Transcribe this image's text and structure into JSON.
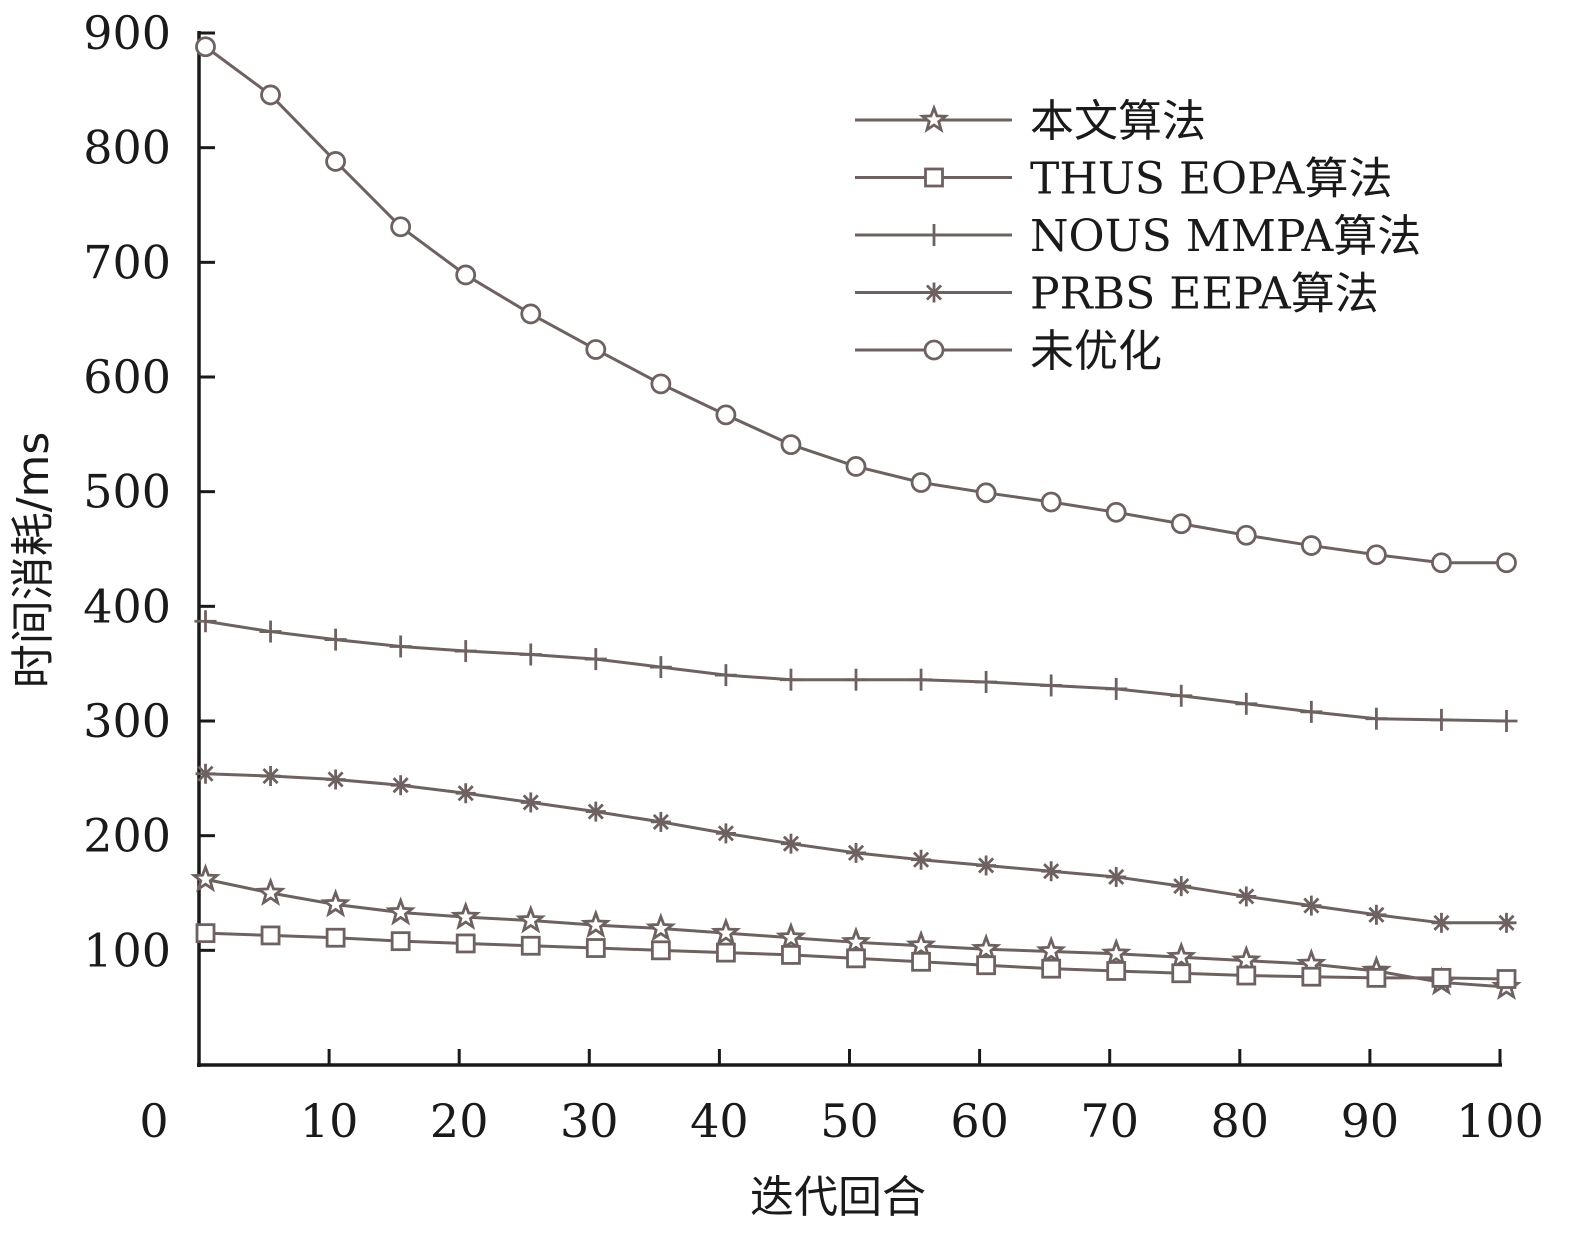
{
  "chart_data": {
    "type": "line",
    "xlabel": "迭代回合",
    "ylabel": "时间消耗/ms",
    "xlim": [
      0,
      100
    ],
    "ylim": [
      0,
      900
    ],
    "x_ticks": [
      0,
      10,
      20,
      30,
      40,
      50,
      60,
      70,
      80,
      90,
      100
    ],
    "y_ticks": [
      100,
      200,
      300,
      400,
      500,
      600,
      700,
      800,
      900
    ],
    "legend_position": "top-right",
    "grid": false,
    "line_color": "#6e6260",
    "x": [
      0.5,
      5.5,
      10.5,
      15.5,
      20.5,
      25.5,
      30.5,
      35.5,
      40.5,
      45.5,
      50.5,
      55.5,
      60.5,
      65.5,
      70.5,
      75.5,
      80.5,
      85.5,
      90.5,
      95.5,
      100.5
    ],
    "series": [
      {
        "name": "本文算法",
        "marker": "star",
        "values": [
          162,
          150,
          140,
          133,
          129,
          126,
          122,
          119,
          115,
          111,
          107,
          104,
          101,
          99,
          97,
          94,
          91,
          88,
          82,
          72,
          68
        ]
      },
      {
        "name": "THUS EOPA算法",
        "marker": "square",
        "values": [
          115,
          113,
          111,
          108,
          106,
          104,
          102,
          100,
          98,
          96,
          93,
          90,
          87,
          84,
          82,
          80,
          78,
          77,
          76,
          76,
          75
        ]
      },
      {
        "name": "NOUS MMPA算法",
        "marker": "plus",
        "values": [
          387,
          378,
          371,
          365,
          361,
          358,
          354,
          347,
          340,
          336,
          336,
          336,
          334,
          331,
          328,
          322,
          315,
          308,
          302,
          301,
          300
        ]
      },
      {
        "name": "PRBS EEPA算法",
        "marker": "asterisk",
        "values": [
          254,
          252,
          249,
          244,
          237,
          229,
          221,
          212,
          202,
          193,
          185,
          179,
          174,
          169,
          164,
          156,
          147,
          139,
          131,
          124,
          124
        ]
      },
      {
        "name": "未优化",
        "marker": "circle",
        "values": [
          888,
          846,
          788,
          731,
          689,
          655,
          624,
          594,
          567,
          541,
          522,
          508,
          499,
          491,
          482,
          472,
          462,
          453,
          445,
          438,
          438
        ]
      }
    ]
  }
}
